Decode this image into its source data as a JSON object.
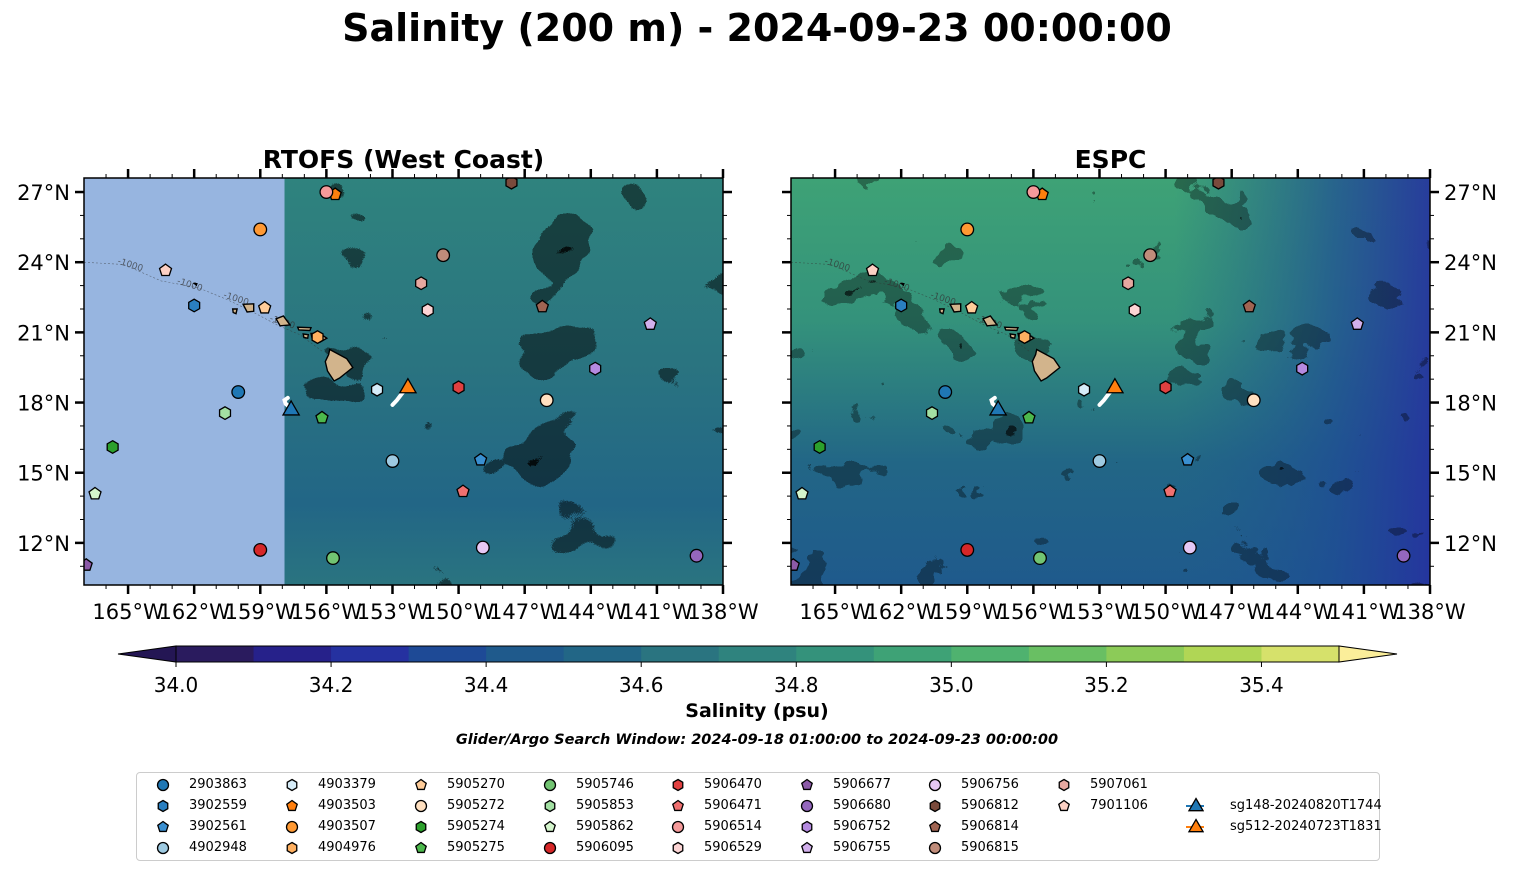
{
  "title": "Salinity (200 m) - 2024-09-23 00:00:00",
  "panels": [
    {
      "title": "RTOFS (West Coast)",
      "model": "rtofs"
    },
    {
      "title": "ESPC",
      "model": "espc"
    }
  ],
  "axes": {
    "lon_ticks": [
      "165°W",
      "162°W",
      "159°W",
      "156°W",
      "153°W",
      "150°W",
      "147°W",
      "144°W",
      "141°W",
      "138°W"
    ],
    "lon_values": [
      -165,
      -162,
      -159,
      -156,
      -153,
      -150,
      -147,
      -144,
      -141,
      -138
    ],
    "lat_ticks": [
      "27°N",
      "24°N",
      "21°N",
      "18°N",
      "15°N",
      "12°N"
    ],
    "lat_values": [
      27,
      24,
      21,
      18,
      15,
      12
    ],
    "lon_range": [
      -167,
      -138
    ],
    "lat_range": [
      10.2,
      27.6
    ]
  },
  "colorbar": {
    "label": "Salinity (psu)",
    "min": 34.0,
    "max": 35.4,
    "step": 0.1,
    "tick_labels": [
      "34.0",
      "34.2",
      "34.4",
      "34.6",
      "34.8",
      "35.0",
      "35.2",
      "35.4"
    ],
    "tick_values": [
      34.0,
      34.2,
      34.4,
      34.6,
      34.8,
      35.0,
      35.2,
      35.4
    ],
    "extend": "both",
    "colors": [
      "#2a1b5e",
      "#26218a",
      "#2531a0",
      "#1e4a96",
      "#1f5a8c",
      "#226686",
      "#2a7480",
      "#2f837e",
      "#34927b",
      "#3ea276",
      "#4fb26f",
      "#69bf63",
      "#8ccb58",
      "#b0d655",
      "#d6e16b"
    ],
    "under_color": "#241654",
    "over_color": "#fbee9a"
  },
  "search_window": "Glider/Argo Search Window: 2024-09-18 01:00:00 to 2024-09-23 00:00:00",
  "contour_label": "-1000",
  "land_color": "#d2b48c",
  "missing_color": "#97b5e0",
  "legend": [
    {
      "id": "2903863",
      "marker": "circle",
      "color": "#1f77b4"
    },
    {
      "id": "3902559",
      "marker": "hexagon",
      "color": "#2a7fc0"
    },
    {
      "id": "3902561",
      "marker": "pentagon",
      "color": "#3a8fd0"
    },
    {
      "id": "4902948",
      "marker": "circle",
      "color": "#9ecae1"
    },
    {
      "id": "4903379",
      "marker": "hexagon",
      "color": "#d6ecf8"
    },
    {
      "id": "4903503",
      "marker": "pentagon",
      "color": "#ff7f0e"
    },
    {
      "id": "4903507",
      "marker": "circle",
      "color": "#ff9933"
    },
    {
      "id": "4904976",
      "marker": "hexagon",
      "color": "#ffb060"
    },
    {
      "id": "5905270",
      "marker": "pentagon",
      "color": "#ffcc99"
    },
    {
      "id": "5905272",
      "marker": "circle",
      "color": "#ffe0c0"
    },
    {
      "id": "5905274",
      "marker": "hexagon",
      "color": "#2ca02c"
    },
    {
      "id": "5905275",
      "marker": "pentagon",
      "color": "#4cb84c"
    },
    {
      "id": "5905746",
      "marker": "circle",
      "color": "#72c472"
    },
    {
      "id": "5905853",
      "marker": "hexagon",
      "color": "#a3e0a3"
    },
    {
      "id": "5905862",
      "marker": "pentagon",
      "color": "#d4f5cc"
    },
    {
      "id": "5906095",
      "marker": "circle",
      "color": "#d62728"
    },
    {
      "id": "5906470",
      "marker": "hexagon",
      "color": "#e04040"
    },
    {
      "id": "5906471",
      "marker": "pentagon",
      "color": "#f07070"
    },
    {
      "id": "5906514",
      "marker": "circle",
      "color": "#f59a9a"
    },
    {
      "id": "5906529",
      "marker": "hexagon",
      "color": "#fcd4d4"
    },
    {
      "id": "5906677",
      "marker": "pentagon",
      "color": "#8c5aa8"
    },
    {
      "id": "5906680",
      "marker": "circle",
      "color": "#9467bd"
    },
    {
      "id": "5906752",
      "marker": "hexagon",
      "color": "#b48ae0"
    },
    {
      "id": "5906755",
      "marker": "pentagon",
      "color": "#d2b0ec"
    },
    {
      "id": "5906756",
      "marker": "circle",
      "color": "#e6c8f5"
    },
    {
      "id": "5906812",
      "marker": "hexagon",
      "color": "#7a4a3c"
    },
    {
      "id": "5906814",
      "marker": "pentagon",
      "color": "#a06452"
    },
    {
      "id": "5906815",
      "marker": "circle",
      "color": "#c08c7a"
    },
    {
      "id": "5907061",
      "marker": "hexagon",
      "color": "#e6a8a0"
    },
    {
      "id": "7901106",
      "marker": "pentagon",
      "color": "#fcd0c4"
    },
    {
      "id": "sg148-20240820T1744",
      "marker": "triangle",
      "color": "#1f77b4",
      "line": true
    },
    {
      "id": "sg512-20240723T1831",
      "marker": "triangle",
      "color": "#ff7f0e",
      "line": true
    }
  ],
  "floats": [
    {
      "id": "2903863",
      "lon": -160.0,
      "lat": 18.45
    },
    {
      "id": "3902559",
      "lon": -162.0,
      "lat": 22.15
    },
    {
      "id": "3902561",
      "lon": -149.0,
      "lat": 15.55
    },
    {
      "id": "4902948",
      "lon": -153.0,
      "lat": 15.5
    },
    {
      "id": "4903379",
      "lon": -153.7,
      "lat": 18.55
    },
    {
      "id": "4903503",
      "lon": -155.6,
      "lat": 26.9
    },
    {
      "id": "4903507",
      "lon": -159.0,
      "lat": 25.4
    },
    {
      "id": "4904976",
      "lon": -156.4,
      "lat": 20.8
    },
    {
      "id": "5905270",
      "lon": -158.8,
      "lat": 22.05
    },
    {
      "id": "5905272",
      "lon": -146.0,
      "lat": 18.1
    },
    {
      "id": "5905274",
      "lon": -165.7,
      "lat": 16.1
    },
    {
      "id": "5905275",
      "lon": -156.2,
      "lat": 17.35
    },
    {
      "id": "5905746",
      "lon": -155.7,
      "lat": 11.35
    },
    {
      "id": "5905853",
      "lon": -160.6,
      "lat": 17.55
    },
    {
      "id": "5905862",
      "lon": -166.5,
      "lat": 14.1
    },
    {
      "id": "5906095",
      "lon": -159.0,
      "lat": 11.7
    },
    {
      "id": "5906470",
      "lon": -150.0,
      "lat": 18.65
    },
    {
      "id": "5906471",
      "lon": -149.8,
      "lat": 14.2
    },
    {
      "id": "5906514",
      "lon": -156.0,
      "lat": 27.0
    },
    {
      "id": "5906529",
      "lon": -151.4,
      "lat": 21.95
    },
    {
      "id": "5906677",
      "lon": -166.9,
      "lat": 11.05
    },
    {
      "id": "5906680",
      "lon": -139.2,
      "lat": 11.45
    },
    {
      "id": "5906752",
      "lon": -143.8,
      "lat": 19.45
    },
    {
      "id": "5906755",
      "lon": -141.3,
      "lat": 21.35
    },
    {
      "id": "5906756",
      "lon": -148.9,
      "lat": 11.8
    },
    {
      "id": "5906812",
      "lon": -147.6,
      "lat": 27.4
    },
    {
      "id": "5906814",
      "lon": -146.2,
      "lat": 22.1
    },
    {
      "id": "5906815",
      "lon": -150.7,
      "lat": 24.3
    },
    {
      "id": "5907061",
      "lon": -151.7,
      "lat": 23.1
    },
    {
      "id": "7901106",
      "lon": -163.3,
      "lat": 23.65
    }
  ],
  "gliders": [
    {
      "id": "sg148-20240820T1744",
      "lon": -157.6,
      "lat": 17.75,
      "track": [
        [
          -157.75,
          18.2
        ],
        [
          -157.9,
          18.1
        ],
        [
          -157.85,
          17.95
        ],
        [
          -157.6,
          17.75
        ]
      ]
    },
    {
      "id": "sg512-20240723T1831",
      "lon": -152.3,
      "lat": 18.7,
      "track": [
        [
          -153.0,
          17.9
        ],
        [
          -152.8,
          18.1
        ],
        [
          -152.6,
          18.35
        ],
        [
          -152.3,
          18.7
        ]
      ]
    }
  ],
  "islands": [
    {
      "name": "Hawaii",
      "polygon": [
        [
          -155.85,
          20.27
        ],
        [
          -155.08,
          19.88
        ],
        [
          -154.8,
          19.5
        ],
        [
          -155.4,
          19.05
        ],
        [
          -155.65,
          18.92
        ],
        [
          -155.95,
          19.35
        ],
        [
          -156.05,
          19.75
        ],
        [
          -155.9,
          20.05
        ]
      ]
    },
    {
      "name": "Maui",
      "polygon": [
        [
          -156.7,
          20.95
        ],
        [
          -156.3,
          20.95
        ],
        [
          -155.98,
          20.75
        ],
        [
          -156.3,
          20.58
        ],
        [
          -156.65,
          20.75
        ]
      ]
    },
    {
      "name": "Molokai",
      "polygon": [
        [
          -157.3,
          21.22
        ],
        [
          -156.7,
          21.2
        ],
        [
          -156.75,
          21.08
        ],
        [
          -157.25,
          21.1
        ]
      ]
    },
    {
      "name": "Lanai",
      "polygon": [
        [
          -157.05,
          20.93
        ],
        [
          -156.82,
          20.9
        ],
        [
          -156.85,
          20.75
        ],
        [
          -157.02,
          20.78
        ]
      ]
    },
    {
      "name": "Oahu",
      "polygon": [
        [
          -158.28,
          21.58
        ],
        [
          -157.95,
          21.7
        ],
        [
          -157.65,
          21.32
        ],
        [
          -158.1,
          21.28
        ]
      ]
    },
    {
      "name": "Kauai",
      "polygon": [
        [
          -159.78,
          22.2
        ],
        [
          -159.3,
          22.22
        ],
        [
          -159.3,
          21.9
        ],
        [
          -159.6,
          21.87
        ]
      ]
    },
    {
      "name": "Niihau",
      "polygon": [
        [
          -160.25,
          22.0
        ],
        [
          -160.05,
          22.0
        ],
        [
          -160.1,
          21.8
        ],
        [
          -160.23,
          21.85
        ]
      ]
    },
    {
      "name": "Nihoa",
      "polygon": [
        [
          -161.98,
          23.08
        ],
        [
          -161.88,
          23.08
        ],
        [
          -161.9,
          23.02
        ]
      ]
    }
  ]
}
